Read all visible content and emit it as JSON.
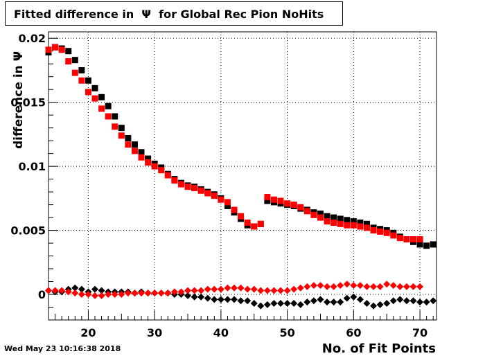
{
  "title": "Fitted difference in  Ψ  for Global Rec Pion NoHits",
  "timestamp": "Wed May 23 10:16:38 2018",
  "chart_data": {
    "type": "scatter",
    "title": "Fitted difference in  Ψ  for Global Rec Pion NoHits",
    "xlabel": "No. of Fit Points",
    "ylabel": "difference in Ψ",
    "xlim": [
      14,
      72.5
    ],
    "ylim": [
      -0.002,
      0.0205
    ],
    "grid": true,
    "xticks": [
      20,
      30,
      40,
      50,
      60,
      70
    ],
    "yticks": [
      0,
      0.005,
      0.01,
      0.015,
      0.02
    ],
    "xtick_labels": [
      "20",
      "30",
      "40",
      "50",
      "60",
      "70"
    ],
    "ytick_labels": [
      "0",
      "0.005",
      "0.01",
      "0.015",
      "0.02"
    ],
    "series": [
      {
        "color": "#000000",
        "marker": "square",
        "x": [
          14,
          15,
          16,
          17,
          18,
          19,
          20,
          21,
          22,
          23,
          24,
          25,
          26,
          27,
          28,
          29,
          30,
          31,
          32,
          33,
          34,
          35,
          36,
          37,
          38,
          39,
          40,
          41,
          42,
          43,
          44,
          45,
          46,
          47,
          48,
          49,
          50,
          51,
          52,
          53,
          54,
          55,
          56,
          57,
          58,
          59,
          60,
          61,
          62,
          63,
          64,
          65,
          66,
          67,
          68,
          69,
          70,
          71,
          72
        ],
        "y": [
          0.0189,
          0.0193,
          0.0192,
          0.019,
          0.0183,
          0.0175,
          0.0167,
          0.0161,
          0.0154,
          0.0147,
          0.0139,
          0.013,
          0.0122,
          0.0117,
          0.0111,
          0.0106,
          0.0102,
          0.0099,
          0.0094,
          0.009,
          0.0087,
          0.0085,
          0.0084,
          0.0082,
          0.008,
          0.0078,
          0.0075,
          0.0069,
          0.0064,
          0.0059,
          0.0054,
          0.0053,
          0.0055,
          0.0073,
          0.0072,
          0.0071,
          0.007,
          0.0069,
          0.0067,
          0.0066,
          0.0064,
          0.0063,
          0.0061,
          0.006,
          0.0059,
          0.0058,
          0.0057,
          0.0056,
          0.0055,
          0.0052,
          0.0051,
          0.005,
          0.0048,
          0.0045,
          0.0043,
          0.0041,
          0.0039,
          0.0038,
          0.0039
        ]
      },
      {
        "color": "#ff0000",
        "marker": "square",
        "x": [
          14,
          15,
          16,
          17,
          18,
          19,
          20,
          21,
          22,
          23,
          24,
          25,
          26,
          27,
          28,
          29,
          30,
          31,
          32,
          33,
          34,
          35,
          36,
          37,
          38,
          39,
          40,
          41,
          42,
          43,
          44,
          45,
          46,
          47,
          48,
          49,
          50,
          51,
          52,
          53,
          54,
          55,
          56,
          57,
          58,
          59,
          60,
          61,
          62,
          63,
          64,
          65,
          66,
          67,
          68,
          69,
          70
        ],
        "y": [
          0.0191,
          0.0193,
          0.0191,
          0.0182,
          0.0173,
          0.0167,
          0.0158,
          0.0153,
          0.0145,
          0.0139,
          0.0131,
          0.0124,
          0.0117,
          0.0112,
          0.0107,
          0.0103,
          0.01,
          0.0097,
          0.0093,
          0.0089,
          0.0086,
          0.0084,
          0.0083,
          0.0081,
          0.0079,
          0.0077,
          0.0074,
          0.0072,
          0.0066,
          0.0061,
          0.0056,
          0.0053,
          0.0055,
          0.0076,
          0.0074,
          0.0073,
          0.0071,
          0.007,
          0.0068,
          0.0065,
          0.0062,
          0.006,
          0.0057,
          0.0056,
          0.0055,
          0.0054,
          0.0054,
          0.0053,
          0.0052,
          0.005,
          0.0049,
          0.0048,
          0.0046,
          0.0044,
          0.0043,
          0.0043,
          0.0043
        ]
      },
      {
        "color": "#000000",
        "marker": "diamond",
        "x": [
          14,
          15,
          16,
          17,
          18,
          19,
          20,
          21,
          22,
          23,
          24,
          25,
          26,
          27,
          28,
          29,
          30,
          31,
          32,
          33,
          34,
          35,
          36,
          37,
          38,
          39,
          40,
          41,
          42,
          43,
          44,
          45,
          46,
          47,
          48,
          49,
          50,
          51,
          52,
          53,
          54,
          55,
          56,
          57,
          58,
          59,
          60,
          61,
          62,
          63,
          64,
          65,
          66,
          67,
          68,
          69,
          70,
          71,
          72
        ],
        "y": [
          0.0003,
          0.0002,
          0.0002,
          0.0004,
          0.0005,
          0.0004,
          0.0002,
          0.0004,
          0.0003,
          0.0002,
          0.0002,
          0.0002,
          0.0002,
          0.0001,
          0.0002,
          0.0001,
          0.0001,
          0.0001,
          0.0001,
          0.0,
          0.0,
          -0.0001,
          -0.0002,
          -0.0002,
          -0.0003,
          -0.0004,
          -0.0004,
          -0.0004,
          -0.0004,
          -0.0005,
          -0.0005,
          -0.0007,
          -0.0009,
          -0.0008,
          -0.0007,
          -0.0007,
          -0.0007,
          -0.0007,
          -0.0008,
          -0.0006,
          -0.0005,
          -0.0004,
          -0.0006,
          -0.0006,
          -0.0006,
          -0.0003,
          -0.0002,
          -0.0004,
          -0.0007,
          -0.0009,
          -0.0008,
          -0.0007,
          -0.0005,
          -0.0004,
          -0.0005,
          -0.0005,
          -0.0006,
          -0.0006,
          -0.0005
        ]
      },
      {
        "color": "#ff0000",
        "marker": "diamond",
        "x": [
          14,
          15,
          16,
          17,
          18,
          19,
          20,
          21,
          22,
          23,
          24,
          25,
          26,
          27,
          28,
          29,
          30,
          31,
          32,
          33,
          34,
          35,
          36,
          37,
          38,
          39,
          40,
          41,
          42,
          43,
          44,
          45,
          46,
          47,
          48,
          49,
          50,
          51,
          52,
          53,
          54,
          55,
          56,
          57,
          58,
          59,
          60,
          61,
          62,
          63,
          64,
          65,
          66,
          67,
          68,
          69,
          70
        ],
        "y": [
          0.0003,
          0.0003,
          0.0003,
          0.0002,
          0.0001,
          0.0,
          0.0,
          -0.0001,
          -0.0001,
          0.0,
          0.0,
          0.0,
          0.0001,
          0.0001,
          0.0001,
          0.0001,
          0.0001,
          0.0001,
          0.0001,
          0.0002,
          0.0002,
          0.0003,
          0.0003,
          0.0003,
          0.0004,
          0.0004,
          0.0004,
          0.0005,
          0.0005,
          0.0005,
          0.0004,
          0.0004,
          0.0003,
          0.0003,
          0.0003,
          0.0003,
          0.0003,
          0.0004,
          0.0005,
          0.0006,
          0.0007,
          0.0007,
          0.0006,
          0.0006,
          0.0007,
          0.0008,
          0.0007,
          0.0007,
          0.0006,
          0.0006,
          0.0006,
          0.0008,
          0.0007,
          0.0006,
          0.0006,
          0.0006,
          0.0006
        ]
      }
    ]
  }
}
